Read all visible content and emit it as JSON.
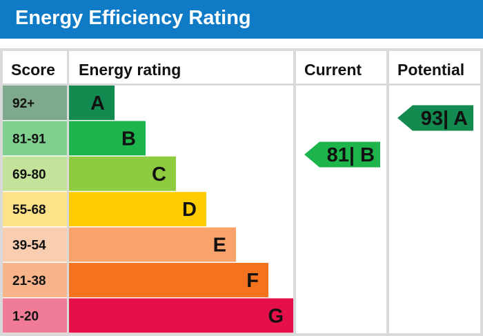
{
  "title": "Energy Efficiency Rating",
  "headers": {
    "score": "Score",
    "rating": "Energy rating",
    "current": "Current",
    "potential": "Potential"
  },
  "chart_data": {
    "type": "bar",
    "categories": [
      "92+",
      "81-91",
      "69-80",
      "55-68",
      "39-54",
      "21-38",
      "1-20"
    ],
    "bands": [
      {
        "range": "92+",
        "letter": "A",
        "color": "#138a4f",
        "score_bg": "#7fa98d"
      },
      {
        "range": "81-91",
        "letter": "B",
        "color": "#1db44b",
        "score_bg": "#80cf8e"
      },
      {
        "range": "69-80",
        "letter": "C",
        "color": "#8ecb3f",
        "score_bg": "#c3e29a"
      },
      {
        "range": "55-68",
        "letter": "D",
        "color": "#ffcc00",
        "score_bg": "#fde28a"
      },
      {
        "range": "39-54",
        "letter": "E",
        "color": "#f9a26a",
        "score_bg": "#f8cdb0"
      },
      {
        "range": "21-38",
        "letter": "F",
        "color": "#f5721e",
        "score_bg": "#f7b48a"
      },
      {
        "range": "1-20",
        "letter": "G",
        "color": "#e5104a",
        "score_bg": "#f07c98"
      }
    ],
    "current": {
      "value": 81,
      "band": "B",
      "label": "81| B",
      "color": "#1db44b"
    },
    "potential": {
      "value": 93,
      "band": "A",
      "label": "93| A",
      "color": "#138a4f"
    }
  }
}
